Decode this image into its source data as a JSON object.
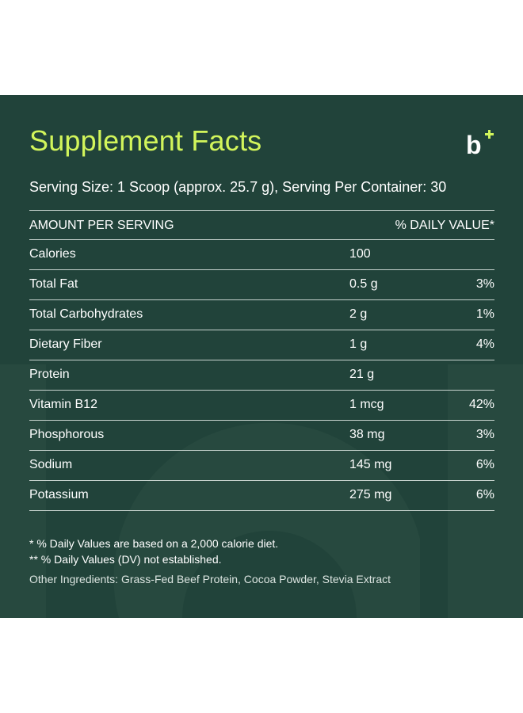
{
  "title": "Supplement Facts",
  "logo_text": "b",
  "serving_line": "Serving Size: 1 Scoop (approx. 25.7 g), Serving Per Container: 30",
  "table": {
    "header_left": "AMOUNT PER SERVING",
    "header_right": "% DAILY VALUE*",
    "rows": [
      {
        "name": "Calories",
        "amount": "100",
        "dv": ""
      },
      {
        "name": "Total Fat",
        "amount": "0.5 g",
        "dv": "3%"
      },
      {
        "name": "Total Carbohydrates",
        "amount": "2 g",
        "dv": "1%"
      },
      {
        "name": "Dietary Fiber",
        "amount": "1 g",
        "dv": "4%"
      },
      {
        "name": "Protein",
        "amount": "21 g",
        "dv": ""
      },
      {
        "name": "Vitamin B12",
        "amount": "1 mcg",
        "dv": "42%"
      },
      {
        "name": "Phosphorous",
        "amount": "38 mg",
        "dv": "3%"
      },
      {
        "name": "Sodium",
        "amount": "145 mg",
        "dv": "6%"
      },
      {
        "name": "Potassium",
        "amount": "275 mg",
        "dv": "6%"
      }
    ]
  },
  "footnotes": {
    "note1": "* % Daily Values are based on a 2,000 calorie diet.",
    "note2": "** % Daily Values (DV) not established.",
    "ingredients": "Other Ingredients: Grass-Fed Beef Protein, Cocoa Powder, Stevia Extract"
  },
  "colors": {
    "panel_bg": "#21433a",
    "title": "#d2f55b",
    "text": "#ffffff",
    "rule": "#c7d3ce"
  }
}
